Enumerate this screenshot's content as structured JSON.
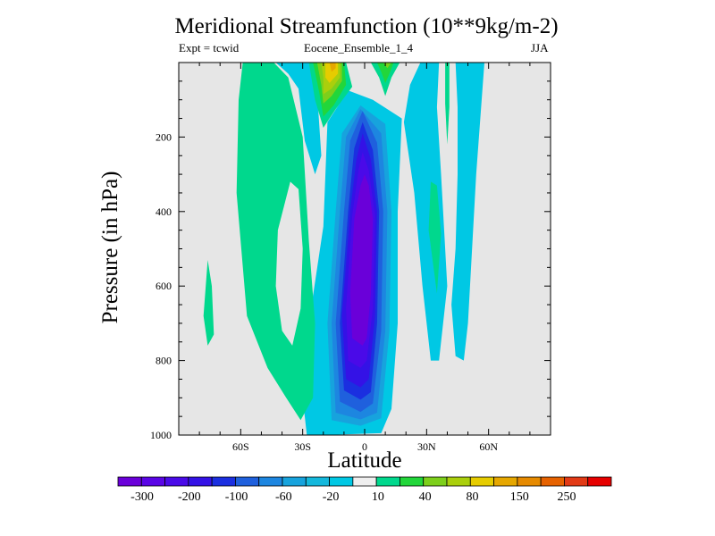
{
  "chart_data": {
    "type": "heatmap",
    "subtype": "filled-contour",
    "title": "Meridional Streamfunction (10**9kg/m-2)",
    "subtitle_left": "Expt = tcwid",
    "subtitle_center": "Eocene_Ensemble_1_4",
    "subtitle_right": "JJA",
    "xlabel": "Latitude",
    "ylabel": "Pressure (in hPa)",
    "xlim": [
      -90,
      90
    ],
    "ylim": [
      1000,
      0
    ],
    "x_ticks": [
      {
        "value": -60,
        "label": "60S"
      },
      {
        "value": -30,
        "label": "30S"
      },
      {
        "value": 0,
        "label": "0"
      },
      {
        "value": 30,
        "label": "30N"
      },
      {
        "value": 60,
        "label": "60N"
      }
    ],
    "y_ticks": [
      {
        "value": 200,
        "label": "200"
      },
      {
        "value": 400,
        "label": "400"
      },
      {
        "value": 600,
        "label": "600"
      },
      {
        "value": 800,
        "label": "800"
      },
      {
        "value": 1000,
        "label": "1000"
      }
    ],
    "background_color": "#e6e6e6",
    "colorbar": {
      "colors": [
        "#6a00d9",
        "#5a05e6",
        "#4a0ae8",
        "#3412e6",
        "#1b2fe0",
        "#1f60dd",
        "#1d86e0",
        "#17a3dd",
        "#14b8dc",
        "#00c8e4",
        "#eeeeee",
        "#00d88d",
        "#22d63a",
        "#7dcf1b",
        "#aacf0c",
        "#e6cc00",
        "#e6a700",
        "#e68a00",
        "#e66200",
        "#e23a16",
        "#e60000"
      ],
      "labels": [
        "-300",
        "-200",
        "-100",
        "-60",
        "-20",
        "10",
        "40",
        "80",
        "150",
        "250"
      ]
    },
    "regions": [
      {
        "name": "sh-cell-outer",
        "level": "-10",
        "color": "#00c8e4",
        "points": [
          [
            -28,
            1000
          ],
          [
            -30,
            900
          ],
          [
            -27,
            700
          ],
          [
            -20,
            440
          ],
          [
            -18,
            160
          ],
          [
            -8,
            75
          ],
          [
            4,
            100
          ],
          [
            18,
            150
          ],
          [
            16,
            400
          ],
          [
            16,
            700
          ],
          [
            13,
            930
          ],
          [
            8,
            995
          ],
          [
            -20,
            1000
          ]
        ]
      },
      {
        "name": "sh-cell-15",
        "level": "-15",
        "color": "#17a3dd",
        "points": [
          [
            -16,
            960
          ],
          [
            -18,
            700
          ],
          [
            -14,
            400
          ],
          [
            -11,
            190
          ],
          [
            -2,
            115
          ],
          [
            10,
            165
          ],
          [
            13,
            400
          ],
          [
            12,
            720
          ],
          [
            8,
            955
          ],
          [
            -2,
            975
          ]
        ]
      },
      {
        "name": "sh-cell-20",
        "level": "-20",
        "color": "#1d86e0",
        "points": [
          [
            -14,
            940
          ],
          [
            -16,
            700
          ],
          [
            -12,
            400
          ],
          [
            -9,
            200
          ],
          [
            -2,
            125
          ],
          [
            8,
            190
          ],
          [
            11,
            400
          ],
          [
            10,
            720
          ],
          [
            6,
            940
          ],
          [
            -2,
            958
          ]
        ]
      },
      {
        "name": "sh-cell-60",
        "level": "-60",
        "color": "#1f60dd",
        "points": [
          [
            -12,
            910
          ],
          [
            -14,
            700
          ],
          [
            -10,
            400
          ],
          [
            -7,
            210
          ],
          [
            -1,
            130
          ],
          [
            6,
            215
          ],
          [
            9,
            400
          ],
          [
            8,
            720
          ],
          [
            4,
            915
          ],
          [
            -2,
            938
          ]
        ]
      },
      {
        "name": "sh-cell-100",
        "level": "-100",
        "color": "#1b2fe0",
        "points": [
          [
            -10,
            880
          ],
          [
            -12,
            700
          ],
          [
            -8,
            400
          ],
          [
            -5,
            230
          ],
          [
            -1,
            160
          ],
          [
            4,
            235
          ],
          [
            7,
            400
          ],
          [
            6,
            700
          ],
          [
            3,
            885
          ],
          [
            -2,
            905
          ]
        ]
      },
      {
        "name": "sh-cell-150",
        "level": "-150",
        "color": "#3412e6",
        "points": [
          [
            -9,
            850
          ],
          [
            -11,
            680
          ],
          [
            -7,
            400
          ],
          [
            -4,
            260
          ],
          [
            -1,
            190
          ],
          [
            3,
            260
          ],
          [
            6,
            400
          ],
          [
            5,
            680
          ],
          [
            2,
            850
          ],
          [
            -2,
            872
          ]
        ]
      },
      {
        "name": "sh-cell-200",
        "level": "-200",
        "color": "#4a0ae8",
        "points": [
          [
            -8,
            800
          ],
          [
            -9,
            660
          ],
          [
            -6,
            410
          ],
          [
            -3,
            290
          ],
          [
            -1,
            240
          ],
          [
            2,
            290
          ],
          [
            5,
            410
          ],
          [
            4,
            660
          ],
          [
            1,
            800
          ],
          [
            -2,
            820
          ]
        ]
      },
      {
        "name": "sh-cell-300",
        "level": "-300",
        "color": "#6a00d9",
        "points": [
          [
            -6,
            740
          ],
          [
            -7,
            620
          ],
          [
            -5,
            420
          ],
          [
            -2,
            330
          ],
          [
            0,
            300
          ],
          [
            2,
            330
          ],
          [
            4,
            420
          ],
          [
            3,
            620
          ],
          [
            1,
            740
          ],
          [
            -1,
            760
          ]
        ]
      },
      {
        "name": "south-cyan-band",
        "level": "-10",
        "color": "#00c8e4",
        "points": [
          [
            -43,
            0
          ],
          [
            -25,
            0
          ],
          [
            -23,
            80
          ],
          [
            -21,
            250
          ],
          [
            -24,
            300
          ],
          [
            -29,
            210
          ],
          [
            -32,
            70
          ],
          [
            -37,
            30
          ]
        ]
      },
      {
        "name": "north-cyan-band",
        "level": "-10",
        "color": "#00c8e4",
        "points": [
          [
            27,
            0
          ],
          [
            36,
            0
          ],
          [
            35,
            120
          ],
          [
            37,
            300
          ],
          [
            40,
            600
          ],
          [
            36,
            800
          ],
          [
            32,
            800
          ],
          [
            28,
            600
          ],
          [
            24,
            350
          ],
          [
            19,
            160
          ],
          [
            22,
            60
          ]
        ]
      },
      {
        "name": "north-cyan-band-2",
        "level": "-10",
        "color": "#00c8e4",
        "points": [
          [
            44,
            0
          ],
          [
            58,
            0
          ],
          [
            56,
            150
          ],
          [
            54,
            300
          ],
          [
            52,
            500
          ],
          [
            50,
            700
          ],
          [
            48,
            800
          ],
          [
            44,
            788
          ],
          [
            42,
            650
          ],
          [
            44,
            500
          ],
          [
            45,
            300
          ],
          [
            45,
            120
          ]
        ]
      },
      {
        "name": "green-positive-south",
        "level": "10",
        "color": "#00d88d",
        "points": [
          [
            -59,
            0
          ],
          [
            -44,
            0
          ],
          [
            -37,
            40
          ],
          [
            -30,
            200
          ],
          [
            -27,
            480
          ],
          [
            -24,
            700
          ],
          [
            -25,
            900
          ],
          [
            -31,
            960
          ],
          [
            -38,
            900
          ],
          [
            -47,
            820
          ],
          [
            -57,
            680
          ],
          [
            -62,
            350
          ],
          [
            -61,
            100
          ]
        ]
      },
      {
        "name": "green-positive-south-hole",
        "level": "0",
        "color": "#e6e6e6",
        "points": [
          [
            -42,
            450
          ],
          [
            -36,
            320
          ],
          [
            -32,
            340
          ],
          [
            -30,
            500
          ],
          [
            -31,
            660
          ],
          [
            -35,
            760
          ],
          [
            -40,
            720
          ],
          [
            -43,
            600
          ]
        ]
      },
      {
        "name": "green-small-south",
        "level": "10",
        "color": "#00d88d",
        "points": [
          [
            -76,
            530
          ],
          [
            -74,
            600
          ],
          [
            -73,
            730
          ],
          [
            -76,
            760
          ],
          [
            -78,
            680
          ]
        ]
      },
      {
        "name": "green-small-north",
        "level": "10",
        "color": "#00d88d",
        "points": [
          [
            32,
            320
          ],
          [
            35,
            330
          ],
          [
            37,
            460
          ],
          [
            35,
            620
          ],
          [
            31,
            450
          ]
        ]
      },
      {
        "name": "green-thin-north",
        "level": "10",
        "color": "#00d88d",
        "points": [
          [
            39,
            0
          ],
          [
            41,
            0
          ],
          [
            41,
            120
          ],
          [
            40,
            220
          ],
          [
            39,
            110
          ]
        ]
      },
      {
        "name": "nh-cell-top-10",
        "level": "10",
        "color": "#00d88d",
        "points": [
          [
            -27,
            0
          ],
          [
            -9,
            0
          ],
          [
            -6,
            65
          ],
          [
            -14,
            125
          ],
          [
            -20,
            175
          ],
          [
            -24,
            100
          ]
        ]
      },
      {
        "name": "nh-cell-top-40",
        "level": "40",
        "color": "#22d63a",
        "points": [
          [
            -25,
            0
          ],
          [
            -10,
            0
          ],
          [
            -9,
            60
          ],
          [
            -15,
            115
          ],
          [
            -20,
            145
          ],
          [
            -22,
            80
          ]
        ]
      },
      {
        "name": "nh-cell-top-80",
        "level": "80",
        "color": "#7dcf1b",
        "points": [
          [
            -23,
            0
          ],
          [
            -11,
            0
          ],
          [
            -11,
            50
          ],
          [
            -16,
            90
          ],
          [
            -20,
            110
          ],
          [
            -21,
            60
          ]
        ]
      },
      {
        "name": "nh-cell-top-120",
        "level": "120",
        "color": "#aacf0c",
        "points": [
          [
            -21,
            0
          ],
          [
            -12,
            0
          ],
          [
            -12,
            40
          ],
          [
            -16,
            70
          ],
          [
            -20,
            85
          ],
          [
            -20,
            40
          ]
        ]
      },
      {
        "name": "nh-cell-top-150",
        "level": "150",
        "color": "#e6cc00",
        "points": [
          [
            -19,
            0
          ],
          [
            -13,
            0
          ],
          [
            -13,
            30
          ],
          [
            -17,
            55
          ],
          [
            -19,
            40
          ]
        ]
      },
      {
        "name": "nh-cell-top-200",
        "level": "200",
        "color": "#e6a700",
        "points": [
          [
            -17,
            0
          ],
          [
            -14,
            0
          ],
          [
            -14,
            15
          ],
          [
            -16,
            25
          ]
        ]
      },
      {
        "name": "nh-top-small-10",
        "level": "10",
        "color": "#00d88d",
        "points": [
          [
            3,
            0
          ],
          [
            17,
            0
          ],
          [
            13,
            40
          ],
          [
            10,
            90
          ],
          [
            7,
            40
          ]
        ]
      },
      {
        "name": "nh-top-small-40",
        "level": "40",
        "color": "#22d63a",
        "points": [
          [
            6,
            0
          ],
          [
            14,
            0
          ],
          [
            12,
            30
          ],
          [
            10,
            55
          ],
          [
            8,
            25
          ]
        ]
      },
      {
        "name": "nh-top-small-80",
        "level": "80",
        "color": "#7dcf1b",
        "points": [
          [
            9,
            0
          ],
          [
            13,
            0
          ],
          [
            11,
            15
          ]
        ]
      }
    ]
  }
}
